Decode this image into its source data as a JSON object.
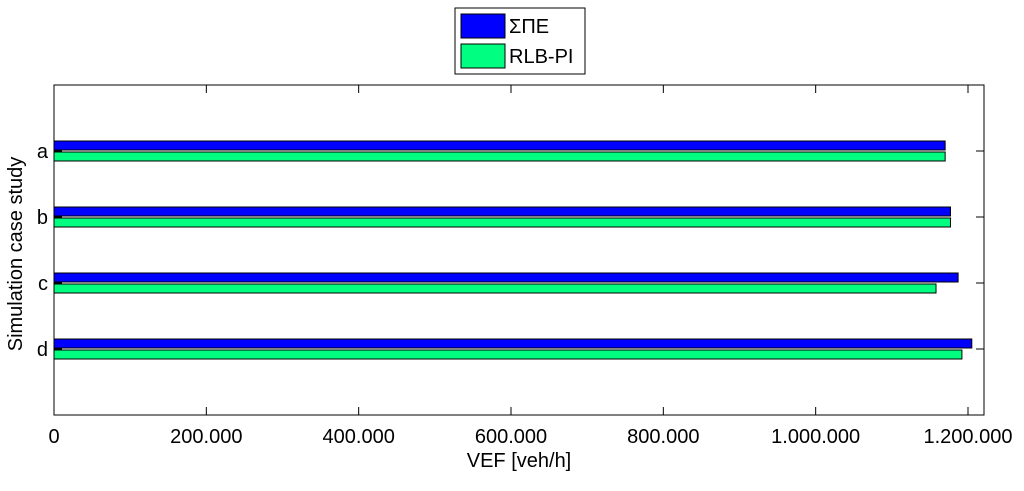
{
  "chart_data": {
    "type": "bar",
    "orientation": "horizontal",
    "categories": [
      "a",
      "b",
      "c",
      "d"
    ],
    "series": [
      {
        "name": "ΣΠΕ",
        "color": "#0000ff",
        "values": [
          1170000,
          1177000,
          1187000,
          1205000
        ]
      },
      {
        "name": "RLB-PI",
        "color": "#00ff80",
        "values": [
          1170000,
          1177000,
          1158000,
          1192000
        ]
      }
    ],
    "xlabel": "VEF [veh/h]",
    "ylabel": "Simulation case study",
    "xlim": [
      0,
      1200000
    ],
    "xticks": [
      0,
      200000,
      400000,
      600000,
      800000,
      1000000,
      1200000
    ],
    "xtick_labels": [
      "0",
      "200.000",
      "400.000",
      "600.000",
      "800.000",
      "1.000.000",
      "1.200.000"
    ],
    "grid": false,
    "legend_position": "top-center"
  }
}
